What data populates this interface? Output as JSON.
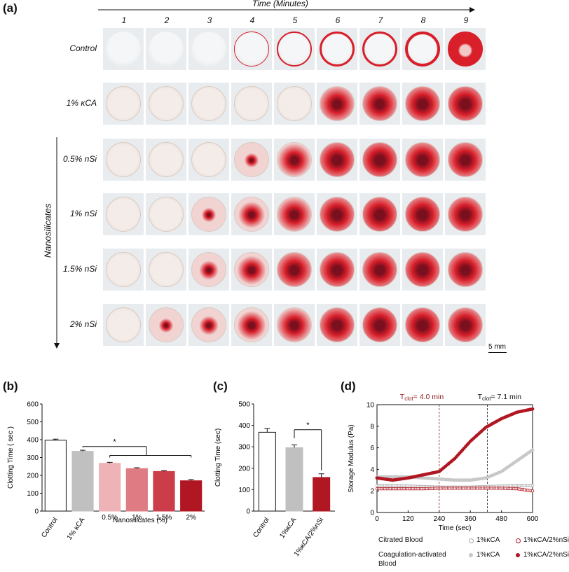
{
  "panel_a": {
    "label": "(a)",
    "time_axis_title": "Time (Minutes)",
    "columns": [
      "1",
      "2",
      "3",
      "4",
      "5",
      "6",
      "7",
      "8",
      "9"
    ],
    "rows": [
      "Control",
      "1% κCA",
      "0.5% nSi",
      "1% nSi",
      "1.5% nSi",
      "2% nSi"
    ],
    "group_label": "Nanosilicates",
    "scale_bar": "5 mm",
    "clot_level": [
      [
        0,
        0,
        0.05,
        0.15,
        0.3,
        0.55,
        0.55,
        0.65,
        0.85
      ],
      [
        0,
        0.05,
        0.1,
        0.1,
        0.2,
        0.8,
        0.85,
        0.9,
        0.95
      ],
      [
        0,
        0,
        0.15,
        0.3,
        0.7,
        0.9,
        0.95,
        0.9,
        0.9
      ],
      [
        0,
        0.05,
        0.3,
        0.55,
        0.75,
        0.9,
        0.95,
        0.95,
        0.9
      ],
      [
        0.05,
        0.15,
        0.4,
        0.6,
        0.85,
        0.9,
        0.9,
        0.95,
        0.9
      ],
      [
        0.1,
        0.3,
        0.4,
        0.6,
        0.75,
        0.9,
        0.95,
        0.95,
        0.9
      ]
    ],
    "colors": {
      "blood": "#d81f2a",
      "dark_clot": "#7a0f1e",
      "dish_bg": "#e8ecef"
    }
  },
  "chart_data": [
    {
      "panel": "(b)",
      "type": "bar",
      "categories": [
        "Control",
        "1% κCA",
        "0.5%",
        "1%",
        "1.5%",
        "2%"
      ],
      "values": [
        397,
        335,
        268,
        238,
        222,
        170
      ],
      "errors": [
        6,
        6,
        5,
        5,
        5,
        7
      ],
      "colors": [
        "#ffffff",
        "#c0c0c0",
        "#eeb3b6",
        "#df7b82",
        "#cc3d4a",
        "#b01722"
      ],
      "ylabel": "Clotting Time ( sec )",
      "xlabel": "Nanosilicates (%)",
      "ylim": [
        0,
        600
      ],
      "yticks": [
        0,
        100,
        200,
        300,
        400,
        500,
        600
      ],
      "significance": "*"
    },
    {
      "panel": "(c)",
      "type": "bar",
      "categories": [
        "Control",
        "1%κCA",
        "1%κCA/2%nSi"
      ],
      "values": [
        368,
        296,
        157
      ],
      "errors": [
        17,
        13,
        17
      ],
      "colors": [
        "#ffffff",
        "#c0c0c0",
        "#b01722"
      ],
      "ylabel": "Clotting Time (sec)",
      "ylim": [
        0,
        500
      ],
      "yticks": [
        0,
        100,
        200,
        300,
        400,
        500
      ],
      "significance": "*"
    },
    {
      "panel": "(d)",
      "type": "scatter",
      "xlabel": "Time (sec)",
      "ylabel": "Storage Modulus (Pa)",
      "xlim": [
        0,
        600
      ],
      "ylim": [
        0,
        10
      ],
      "xticks": [
        0,
        120,
        240,
        360,
        480,
        600
      ],
      "yticks": [
        0,
        2,
        4,
        6,
        8,
        10
      ],
      "annotations": [
        {
          "text": "T",
          "sub": "clot",
          "value": "= 4.0 min",
          "x": 240,
          "color": "#8b1a1a"
        },
        {
          "text": "T",
          "sub": "clot",
          "value": "= 7.1 min",
          "x": 426,
          "color": "#111111"
        }
      ],
      "series": [
        {
          "name": "Citrated Blood 1%κCA",
          "marker": "open",
          "color": "#aaaaaa",
          "x": [
            0,
            60,
            120,
            180,
            240,
            300,
            360,
            420,
            480,
            540,
            600
          ],
          "y": [
            2.5,
            2.5,
            2.45,
            2.4,
            2.35,
            2.35,
            2.35,
            2.4,
            2.45,
            2.5,
            2.5
          ]
        },
        {
          "name": "Citrated Blood 1%κCA/2%nSi",
          "marker": "open",
          "color": "#b01722",
          "x": [
            0,
            60,
            120,
            180,
            240,
            300,
            360,
            420,
            480,
            540,
            600
          ],
          "y": [
            2.2,
            2.2,
            2.2,
            2.2,
            2.25,
            2.25,
            2.25,
            2.25,
            2.25,
            2.2,
            2.0
          ]
        },
        {
          "name": "Coagulation-activated Blood 1%κCA",
          "marker": "filled",
          "color": "#c8c8c8",
          "x": [
            0,
            60,
            120,
            180,
            240,
            300,
            360,
            420,
            480,
            540,
            600
          ],
          "y": [
            3.3,
            3.3,
            3.3,
            3.2,
            3.1,
            3.0,
            3.0,
            3.2,
            3.8,
            4.8,
            5.8
          ]
        },
        {
          "name": "Coagulation-activated Blood 1%κCA/2%nSi",
          "marker": "filled",
          "color": "#b01722",
          "x": [
            0,
            60,
            120,
            180,
            240,
            300,
            360,
            420,
            480,
            540,
            600
          ],
          "y": [
            3.2,
            3.0,
            3.2,
            3.5,
            3.8,
            5.0,
            6.6,
            7.9,
            8.7,
            9.3,
            9.6
          ]
        }
      ],
      "legend": {
        "row1_label": "Citrated Blood",
        "row2_label": "Coagulation-activated Blood",
        "item_kca": "1%κCA",
        "item_nsi": "1%κCA/2%nSi"
      }
    }
  ]
}
